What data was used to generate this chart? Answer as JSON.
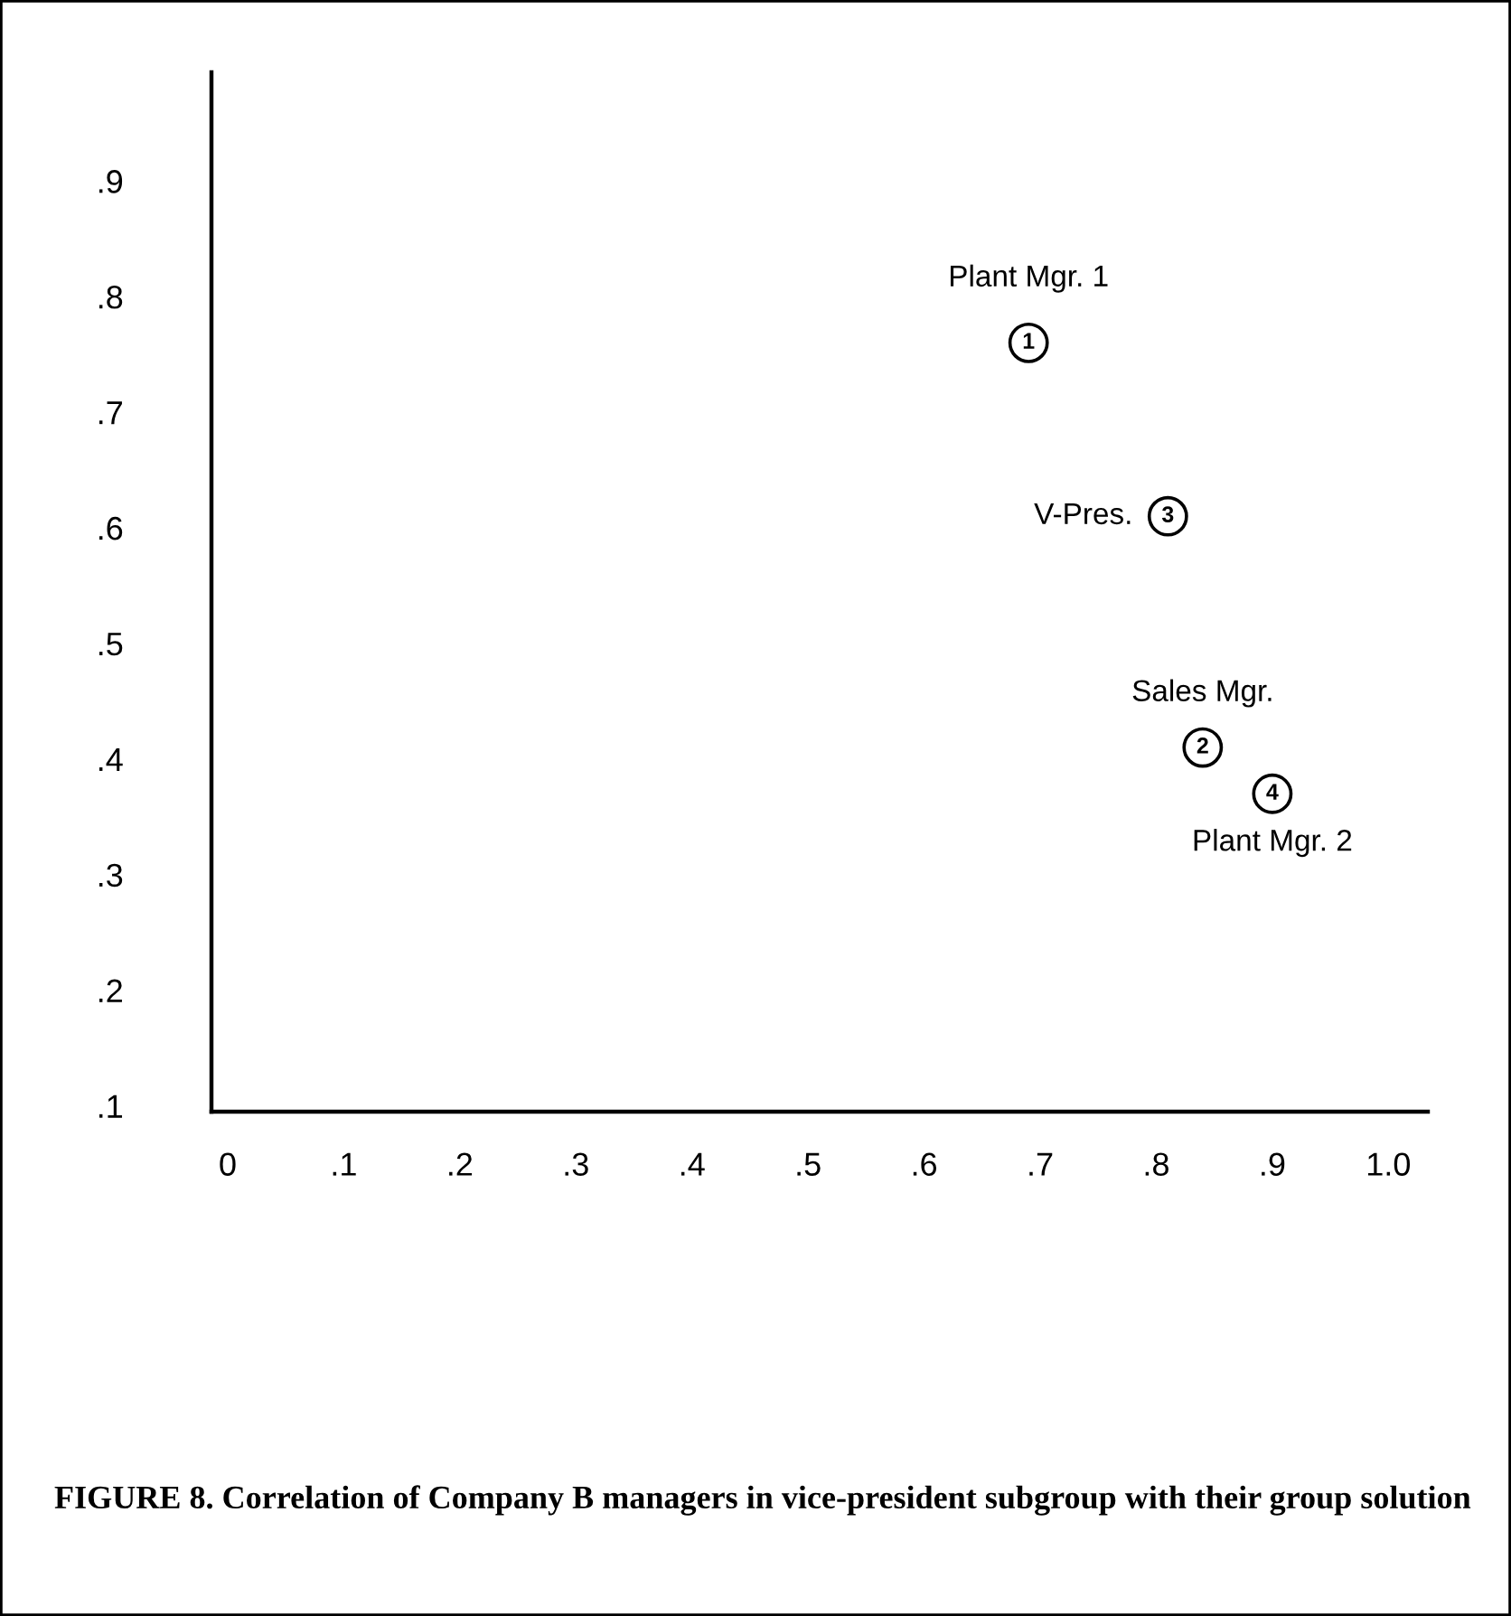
{
  "chart_data": {
    "type": "scatter",
    "x": [
      0.69,
      0.81,
      0.84,
      0.9
    ],
    "values": [
      0.76,
      0.61,
      0.41,
      0.37
    ],
    "color": "#000000",
    "marker": "circle",
    "xlim": [
      -0.014,
      1.034
    ],
    "ylim": [
      0.095,
      0.994
    ],
    "xticks": [
      0,
      {
        "value": 0.1,
        "label": ".1"
      },
      {
        "value": 0.2,
        "label": ".2"
      },
      {
        "value": 0.3,
        "label": ".3"
      },
      {
        "value": 0.4,
        "label": ".4"
      },
      {
        "value": 0.5,
        "label": ".5"
      },
      {
        "value": 0.6,
        "label": ".6"
      },
      {
        "value": 0.7,
        "label": ".7"
      },
      {
        "value": 0.8,
        "label": ".8"
      },
      {
        "value": 0.9,
        "label": ".9"
      },
      {
        "value": 1.0,
        "label": "1.0"
      }
    ],
    "yticks": [
      {
        "value": 0.1,
        "label": ".1"
      },
      {
        "value": 0.2,
        "label": ".2"
      },
      {
        "value": 0.3,
        "label": ".3"
      },
      {
        "value": 0.4,
        "label": ".4"
      },
      {
        "value": 0.5,
        "label": ".5"
      },
      {
        "value": 0.6,
        "label": ".6"
      },
      {
        "value": 0.7,
        "label": ".7"
      },
      {
        "value": 0.8,
        "label": ".8"
      },
      {
        "value": 0.9,
        "label": ".9"
      }
    ],
    "grid": false,
    "annotations": [
      {
        "text": "Plant Mgr. 1",
        "x": 0.69,
        "y": 0.76
      },
      {
        "text": "V-Pres.",
        "x": 0.81,
        "y": 0.61
      },
      {
        "text": "Sales Mgr.",
        "x": 0.84,
        "y": 0.41
      },
      {
        "text": "Plant Mgr. 2",
        "x": 0.9,
        "y": 0.37
      },
      {
        "text": "1",
        "x": 0.69,
        "y": 0.76
      },
      {
        "text": "3",
        "x": 0.81,
        "y": 0.61
      },
      {
        "text": "2",
        "x": 0.84,
        "y": 0.41
      },
      {
        "text": "4",
        "x": 0.9,
        "y": 0.37
      },
      "FIGURE 8. Correlation of Company B managers in vice-president subgroup with their group solution"
    ]
  }
}
